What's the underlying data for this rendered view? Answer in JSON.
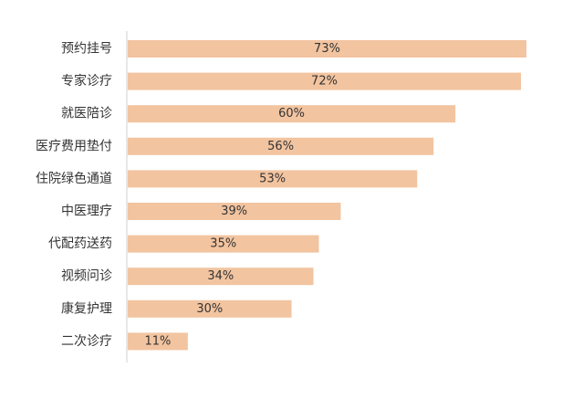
{
  "chart_data": {
    "type": "bar",
    "orientation": "horizontal",
    "categories": [
      "预约挂号",
      "专家诊疗",
      "就医陪诊",
      "医疗费用垫付",
      "住院绿色通道",
      "中医理疗",
      "代配药送药",
      "视频问诊",
      "康复护理",
      "二次诊疗"
    ],
    "values": [
      73,
      72,
      60,
      56,
      53,
      39,
      35,
      34,
      30,
      11
    ],
    "value_labels": [
      "73%",
      "72%",
      "60%",
      "56%",
      "53%",
      "39%",
      "35%",
      "34%",
      "30%",
      "11%"
    ],
    "xlim": [
      0,
      73
    ],
    "bar_color": "#f2c4a0",
    "axis_color": "#cfcfcf",
    "title": "",
    "xlabel": "",
    "ylabel": "",
    "grid": false,
    "legend": "none"
  }
}
